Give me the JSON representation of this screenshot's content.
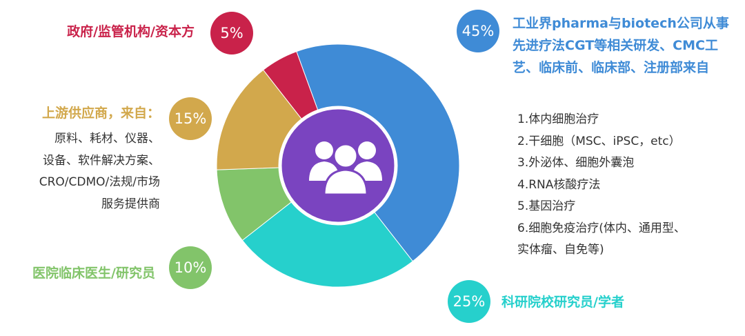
{
  "chart_data": {
    "type": "donut",
    "categories": [
      "工业界pharma与biotech公司从事先进疗法CGT等相关研发、CMC工艺、临床前、临床部、注册部来自",
      "科研院校研究员/学者",
      "医院临床医生/研究员",
      "上游供应商，来自：",
      "政府/监管机构/资本方"
    ],
    "values": [
      45,
      25,
      10,
      15,
      5
    ],
    "value_labels": [
      "45%",
      "25%",
      "10%",
      "15%",
      "5%"
    ],
    "colors": [
      "#3f8bd6",
      "#26d0cc",
      "#82c46a",
      "#d2a84c",
      "#c9224a"
    ],
    "descriptions": [
      [
        "1.体内细胞治疗",
        "2.干细胞（MSC、iPSC，etc）",
        "3.外泌体、细胞外囊泡",
        "4.RNA核酸疗法",
        "5.基因治疗",
        "6.细胞免疫治疗(体内、通用型、",
        "实体瘤、自免等)"
      ],
      [],
      [],
      [
        "原料、耗材、仪器、",
        "设备、软件解决方案、",
        "CRO/CDMO/法规/市场",
        "服务提供商"
      ],
      []
    ]
  }
}
